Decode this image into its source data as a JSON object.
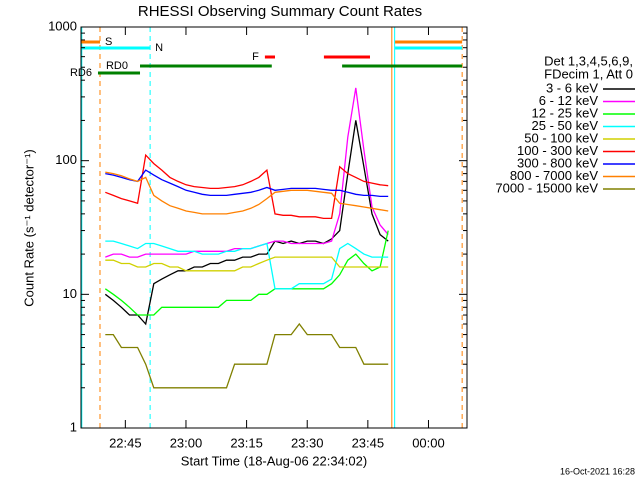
{
  "chart_data": {
    "type": "line",
    "title": "RHESSI Observing Summary Count Rates",
    "xlabel": "Start Time (18-Aug-06 22:34:02)",
    "ylabel": "Count Rate (s⁻¹ detector⁻¹)",
    "legend_header": [
      "Det 1,3,4,5,6,9,",
      "FDecim 1, Att 0"
    ],
    "footer": "16-Oct-2021 16:28",
    "legend": "right",
    "grid": false,
    "ylog": true,
    "xlim": [
      0,
      95.5
    ],
    "ylim": [
      1,
      1000
    ],
    "xticks": [
      {
        "value": 10.97,
        "label": "22:45"
      },
      {
        "value": 25.97,
        "label": "23:00"
      },
      {
        "value": 40.97,
        "label": "23:15"
      },
      {
        "value": 55.97,
        "label": "23:30"
      },
      {
        "value": 70.97,
        "label": "23:45"
      },
      {
        "value": 85.97,
        "label": "00:00"
      }
    ],
    "yticks": [
      1,
      10,
      100,
      1000
    ],
    "yminorticks": [
      2,
      3,
      4,
      5,
      6,
      7,
      8,
      9,
      20,
      30,
      40,
      50,
      60,
      70,
      80,
      90,
      200,
      300,
      400,
      500,
      600,
      700,
      800,
      900
    ],
    "x": [
      6,
      8,
      10,
      12,
      14,
      16,
      18,
      20,
      22,
      24,
      26,
      28,
      30,
      32,
      34,
      36,
      38,
      40,
      42,
      44,
      46,
      48,
      50,
      52,
      54,
      56,
      58,
      60,
      62,
      64,
      66,
      68,
      70,
      72,
      74,
      76
    ],
    "series": [
      {
        "name": "3 - 6 keV",
        "color": "#000000",
        "values": [
          10,
          9,
          8,
          7,
          7,
          6,
          12,
          13,
          14,
          15,
          15,
          16,
          16,
          17,
          17,
          18,
          18,
          19,
          19,
          20,
          20,
          25,
          24,
          25,
          24,
          25,
          25,
          24,
          26,
          30,
          80,
          200,
          90,
          40,
          28,
          25
        ]
      },
      {
        "name": "6 - 12 keV",
        "color": "#ff00ff",
        "values": [
          19,
          20,
          20,
          19,
          19,
          20,
          20,
          20,
          20,
          20,
          20,
          21,
          21,
          21,
          21,
          21,
          22,
          22,
          22,
          23,
          24,
          25,
          25,
          24,
          24,
          24,
          24,
          24,
          25,
          40,
          150,
          350,
          120,
          45,
          33,
          28
        ]
      },
      {
        "name": "12 - 25 keV",
        "color": "#00ff00",
        "values": [
          11,
          10,
          9,
          8,
          7,
          7,
          7,
          8,
          8,
          8,
          8,
          8,
          8,
          8,
          8,
          9,
          9,
          9,
          9,
          10,
          10,
          11,
          11,
          11,
          11,
          11,
          11,
          11,
          12,
          14,
          18,
          20,
          17,
          15,
          16,
          30
        ]
      },
      {
        "name": "25 - 50 keV",
        "color": "#00ffff",
        "values": [
          25,
          25,
          24,
          23,
          22,
          24,
          24,
          23,
          22,
          21,
          21,
          21,
          20,
          20,
          20,
          21,
          21,
          22,
          22,
          23,
          24,
          11,
          11,
          11,
          12,
          12,
          12,
          12,
          13,
          22,
          24,
          22,
          20,
          19,
          19,
          19
        ]
      },
      {
        "name": "50 - 100 keV",
        "color": "#d0d000",
        "values": [
          18,
          18,
          17,
          17,
          16,
          16,
          17,
          17,
          16,
          16,
          15,
          15,
          15,
          15,
          15,
          15,
          15,
          16,
          16,
          17,
          18,
          19,
          19,
          19,
          19,
          19,
          19,
          19,
          19,
          16,
          16,
          16,
          16,
          16,
          16,
          16
        ]
      },
      {
        "name": "100 - 300 keV",
        "color": "#ff0000",
        "values": [
          58,
          55,
          52,
          50,
          48,
          110,
          95,
          85,
          75,
          70,
          66,
          64,
          63,
          62,
          62,
          63,
          64,
          66,
          70,
          75,
          85,
          40,
          39,
          39,
          38,
          38,
          38,
          37,
          37,
          90,
          80,
          75,
          70,
          68,
          66,
          65
        ]
      },
      {
        "name": "300 - 800 keV",
        "color": "#0000ff",
        "values": [
          80,
          78,
          75,
          72,
          70,
          85,
          78,
          72,
          68,
          64,
          60,
          58,
          56,
          55,
          55,
          55,
          56,
          57,
          58,
          60,
          63,
          60,
          61,
          62,
          62,
          62,
          62,
          61,
          60,
          60,
          58,
          56,
          55,
          55,
          54,
          54
        ]
      },
      {
        "name": "800 - 7000 keV",
        "color": "#ff8000",
        "values": [
          82,
          80,
          77,
          73,
          70,
          75,
          55,
          50,
          46,
          44,
          42,
          41,
          40,
          40,
          40,
          40,
          41,
          42,
          44,
          47,
          52,
          58,
          59,
          60,
          60,
          60,
          59,
          58,
          57,
          48,
          47,
          46,
          45,
          44,
          43,
          42
        ]
      },
      {
        "name": "7000 - 15000 keV",
        "color": "#808000",
        "values": [
          5,
          5,
          4,
          4,
          4,
          3,
          2,
          2,
          2,
          2,
          2,
          2,
          2,
          2,
          2,
          2,
          3,
          3,
          3,
          3,
          3,
          5,
          5,
          5,
          6,
          5,
          5,
          5,
          5,
          4,
          4,
          4,
          3,
          3,
          3,
          3
        ]
      }
    ],
    "flags": [
      {
        "label": "S",
        "color": "#ff8000",
        "intervals": [
          [
            0,
            4.7
          ],
          [
            77.7,
            94.3
          ]
        ]
      },
      {
        "label": "N",
        "color": "#00ffff",
        "intervals": [
          [
            0,
            17.1
          ],
          [
            77.7,
            94.3
          ]
        ]
      },
      {
        "label": "F",
        "color": "#ff0000",
        "intervals": [
          [
            45.5,
            48
          ],
          [
            60.1,
            71.5
          ]
        ]
      },
      {
        "label": "RD0",
        "color": "#008000",
        "intervals": [
          [
            14.6,
            47.2
          ],
          [
            64.6,
            94.3
          ]
        ]
      },
      {
        "label": "RD6",
        "color": "#008000",
        "intervals": [
          [
            4.2,
            14.6
          ]
        ]
      }
    ],
    "markers": [
      {
        "x": 0.2,
        "color": "#00ffff",
        "dashed": false
      },
      {
        "x": 4.7,
        "color": "#ff8000",
        "dashed": true
      },
      {
        "x": 17.1,
        "color": "#00ffff",
        "dashed": true
      },
      {
        "x": 76.9,
        "color": "#ff8000",
        "dashed": false
      },
      {
        "x": 77.6,
        "color": "#00ffff",
        "dashed": false
      },
      {
        "x": 94.3,
        "color": "#ff8000",
        "dashed": true
      }
    ]
  }
}
